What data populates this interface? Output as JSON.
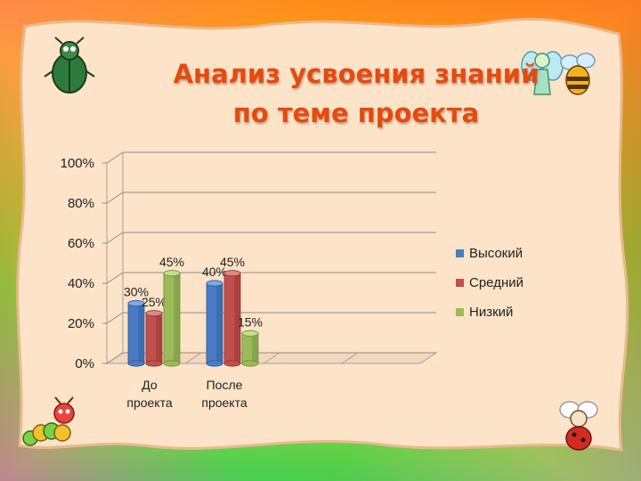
{
  "title": {
    "line1": "Анализ усвоения знаний",
    "line2": "по теме проекта"
  },
  "colors": {
    "title": "#e64a0e",
    "background": "#fde3c8",
    "high": "#4a7cc4",
    "medium": "#c0504d",
    "low": "#9bbb59"
  },
  "decorations": [
    "beetle-icon",
    "fairy-icon",
    "bee-icon",
    "caterpillar-icon",
    "ladybug-icon"
  ],
  "chart_data": {
    "type": "bar",
    "categories": [
      "До проекта",
      "После проекта"
    ],
    "category_lines": [
      [
        "До",
        "проекта"
      ],
      [
        "После",
        "проекта"
      ]
    ],
    "series": [
      {
        "name": "Высокий",
        "values": [
          30,
          40
        ],
        "labels": [
          "30%",
          "40%"
        ]
      },
      {
        "name": "Средний",
        "values": [
          25,
          45
        ],
        "labels": [
          "25%",
          "45%"
        ]
      },
      {
        "name": "Низкий",
        "values": [
          45,
          15
        ],
        "labels": [
          "45%",
          "15%"
        ]
      }
    ],
    "yticks": [
      "0%",
      "20%",
      "40%",
      "60%",
      "80%",
      "100%"
    ],
    "ylim": [
      0,
      100
    ],
    "grid": true,
    "legend": "right",
    "xlabel": "",
    "ylabel": ""
  }
}
